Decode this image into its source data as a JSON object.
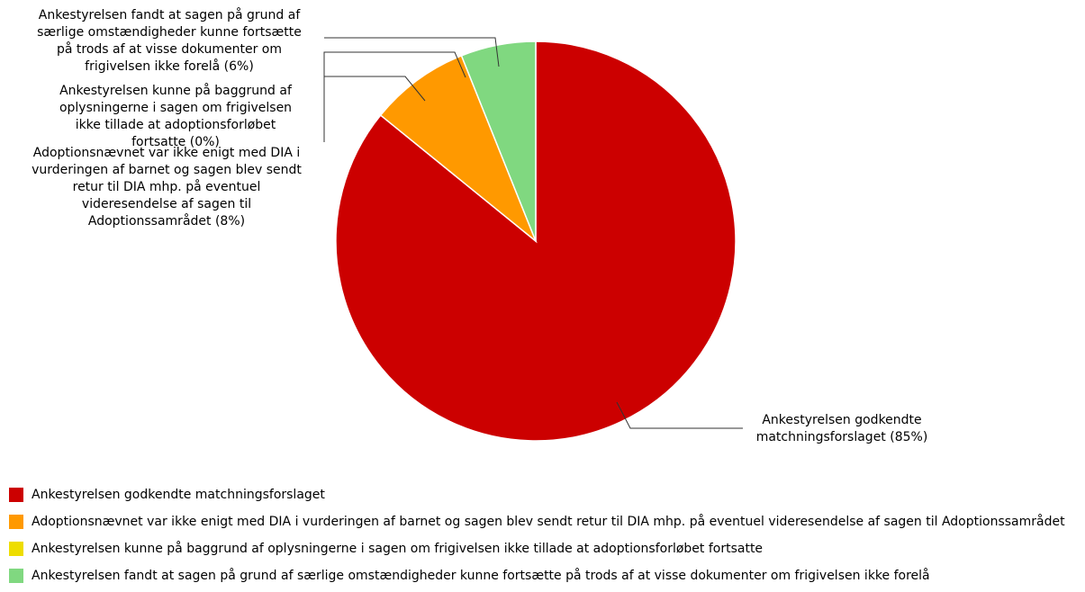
{
  "chart_data": {
    "type": "pie",
    "title": "",
    "slices": [
      {
        "label": "Ankestyrelsen godkendte matchningsforslaget",
        "callout": "Ankestyrelsen godkendte matchningsforslaget (85%)",
        "value": 85,
        "color": "#cc0000"
      },
      {
        "label": "Adoptionsnævnet var ikke enigt med DIA i vurderingen af barnet og sagen blev sendt retur til DIA mhp. på eventuel videresendelse af sagen til Adoptionssamrådet",
        "callout": "Adoptionsnævnet var ikke enigt med DIA i vurderingen af barnet og sagen blev sendt retur til DIA mhp. på eventuel videresendelse af sagen til Adoptionssamrådet (8%)",
        "value": 8,
        "color": "#ff9900"
      },
      {
        "label": "Ankestyrelsen kunne på baggrund af oplysningerne i sagen om frigivelsen ikke tillade at adoptionsforløbet fortsatte",
        "callout": "Ankestyrelsen kunne på baggrund af oplysningerne i sagen om frigivelsen ikke tillade at adoptionsforløbet fortsatte (0%)",
        "value": 0,
        "color": "#eedd00"
      },
      {
        "label": "Ankestyrelsen fandt at sagen på grund af særlige omstændigheder kunne fortsætte på trods af at visse dokumenter om frigivelsen ikke forelå",
        "callout": "Ankestyrelsen fandt at sagen på grund af særlige omstændigheder kunne fortsætte på trods af at visse dokumenter om frigivelsen ikke forelå (6%)",
        "value": 6,
        "color": "#80d880"
      }
    ],
    "legend": {
      "position": "bottom",
      "entries": [
        "Ankestyrelsen godkendte matchningsforslaget",
        "Adoptionsnævnet var ikke enigt med DIA i vurderingen af barnet og sagen blev sendt retur til DIA mhp. på eventuel videresendelse af sagen til Adoptionssamrådet",
        "Ankestyrelsen kunne på baggrund af oplysningerne i sagen om frigivelsen ikke tillade at adoptionsforløbet fortsatte",
        "Ankestyrelsen fandt at sagen på grund af særlige omstændigheder kunne fortsætte på trods af at visse dokumenter om frigivelsen ikke forelå"
      ]
    }
  }
}
